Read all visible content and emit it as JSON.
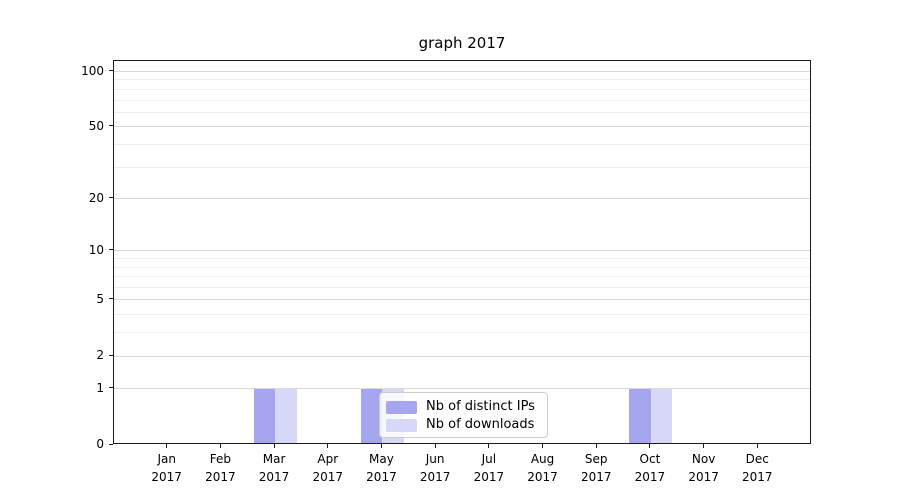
{
  "chart_data": {
    "type": "bar",
    "title": "graph 2017",
    "x_categories": [
      "Jan",
      "Feb",
      "Mar",
      "Apr",
      "May",
      "Jun",
      "Jul",
      "Aug",
      "Sep",
      "Oct",
      "Nov",
      "Dec"
    ],
    "x_year": "2017",
    "series": [
      {
        "name": "Nb of distinct IPs",
        "color": "#a5a5f0",
        "values": [
          0,
          0,
          1,
          0,
          1,
          0,
          0,
          0,
          0,
          1,
          0,
          0
        ]
      },
      {
        "name": "Nb of downloads",
        "color": "#d7d7f7",
        "values": [
          0,
          0,
          1,
          0,
          1,
          0,
          0,
          0,
          0,
          1,
          0,
          0
        ]
      }
    ],
    "y_scale": "log1p",
    "ylim": [
      0,
      114
    ],
    "y_ticks": [
      0,
      1,
      2,
      5,
      10,
      20,
      50,
      100
    ],
    "y_minor_gridlines": [
      3,
      4,
      6,
      7,
      8,
      9,
      30,
      40,
      60,
      70,
      80,
      90
    ],
    "grid": {
      "major_color": "#d9d9d9",
      "minor_color": "#efefef"
    },
    "legend": {
      "position": "lower-center-right"
    }
  }
}
